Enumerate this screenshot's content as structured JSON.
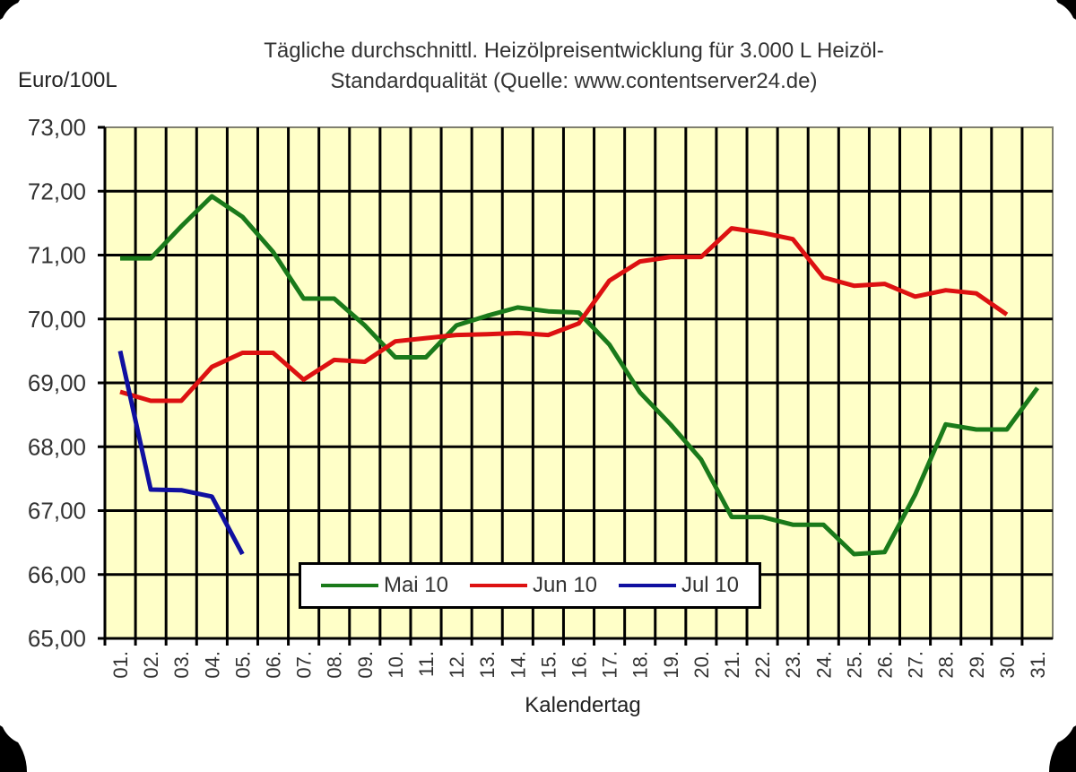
{
  "chart_data": {
    "type": "line",
    "title": "Tägliche durchschnittl. Heizölpreisentwicklung für 3.000 L Heizöl-Standardqualität (Quelle: www.contentserver24.de)",
    "title_lines": [
      "Tägliche durchschnittl. Heizölpreisentwicklung für 3.000 L Heizöl-",
      "Standardqualität (Quelle: www.contentserver24.de)"
    ],
    "xlabel": "Kalendertag",
    "ylabel": "Euro/100L",
    "ylim": [
      65,
      73
    ],
    "yticks": [
      "65,00",
      "66,00",
      "67,00",
      "68,00",
      "69,00",
      "70,00",
      "71,00",
      "72,00",
      "73,00"
    ],
    "categories": [
      "01.",
      "02.",
      "03.",
      "04.",
      "05.",
      "06.",
      "07.",
      "08.",
      "09.",
      "10.",
      "11.",
      "12.",
      "13.",
      "14.",
      "15.",
      "16.",
      "17.",
      "18.",
      "19.",
      "20.",
      "21.",
      "22.",
      "23.",
      "24.",
      "25.",
      "26.",
      "27.",
      "28.",
      "29.",
      "30.",
      "31."
    ],
    "grid": true,
    "legend_position": "bottom-inside",
    "plot_background": "#ffffc8",
    "series": [
      {
        "name": "Mai 10",
        "color": "#1a7a1a",
        "values": [
          70.95,
          70.95,
          71.45,
          71.92,
          71.6,
          71.05,
          70.32,
          70.32,
          69.9,
          69.4,
          69.4,
          69.9,
          70.05,
          70.18,
          70.12,
          70.1,
          69.6,
          68.85,
          68.35,
          67.8,
          66.9,
          66.9,
          66.78,
          66.78,
          66.32,
          66.35,
          67.25,
          68.35,
          68.27,
          68.27,
          68.92
        ]
      },
      {
        "name": "Jun 10",
        "color": "#dd1111",
        "values": [
          68.86,
          68.72,
          68.72,
          69.25,
          69.47,
          69.47,
          69.05,
          69.36,
          69.33,
          69.65,
          69.7,
          69.75,
          69.76,
          69.78,
          69.75,
          69.93,
          70.6,
          70.9,
          70.97,
          70.97,
          71.42,
          71.35,
          71.25,
          70.65,
          70.52,
          70.55,
          70.35,
          70.45,
          70.4,
          70.07
        ]
      },
      {
        "name": "Jul 10",
        "color": "#1010a0",
        "values": [
          69.5,
          67.33,
          67.32,
          67.22,
          66.32
        ]
      }
    ]
  }
}
